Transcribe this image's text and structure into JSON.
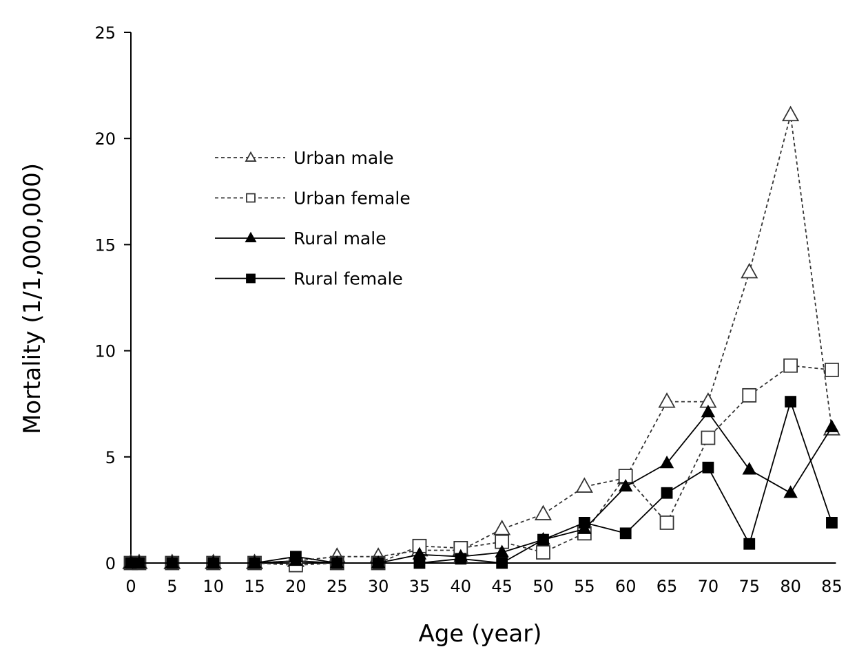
{
  "chart_data": {
    "type": "line",
    "title": "",
    "xlabel": "Age (year)",
    "ylabel": "Mortality (1/1,000,000)",
    "xlim": [
      0,
      85
    ],
    "ylim": [
      0,
      25
    ],
    "x_ticks": [
      0,
      5,
      10,
      15,
      20,
      25,
      30,
      35,
      40,
      45,
      50,
      55,
      60,
      65,
      70,
      75,
      80,
      85
    ],
    "y_ticks": [
      0,
      5,
      10,
      15,
      20,
      25
    ],
    "grid": false,
    "legend_position": "top-left",
    "series": [
      {
        "name": "Urban male",
        "line": "dashed",
        "marker": "triangle",
        "fill": "open",
        "color": "#333333",
        "x": [
          0,
          1,
          5,
          10,
          15,
          20,
          25,
          30,
          35,
          40,
          45,
          50,
          55,
          60,
          65,
          70,
          75,
          80,
          85
        ],
        "y": [
          0,
          0,
          0,
          0,
          0,
          0.1,
          0.3,
          0.3,
          0.6,
          0.6,
          1.6,
          2.3,
          3.6,
          4.0,
          7.6,
          7.6,
          13.7,
          21.1,
          6.3
        ]
      },
      {
        "name": "Urban female",
        "line": "dashed",
        "marker": "square",
        "fill": "open",
        "color": "#333333",
        "x": [
          0,
          1,
          5,
          10,
          15,
          20,
          25,
          30,
          35,
          40,
          45,
          50,
          55,
          60,
          65,
          70,
          75,
          80,
          85
        ],
        "y": [
          0,
          0,
          0,
          0,
          0,
          -0.1,
          0,
          0,
          0.8,
          0.7,
          1.0,
          0.5,
          1.4,
          4.1,
          1.9,
          5.9,
          7.9,
          9.3,
          9.1
        ]
      },
      {
        "name": "Rural male",
        "line": "solid",
        "marker": "triangle",
        "fill": "filled",
        "color": "#000000",
        "x": [
          0,
          1,
          5,
          10,
          15,
          20,
          25,
          30,
          35,
          40,
          45,
          50,
          55,
          60,
          65,
          70,
          75,
          80,
          85
        ],
        "y": [
          0,
          0,
          0,
          0,
          0,
          0.1,
          0,
          0,
          0.4,
          0.3,
          0.5,
          1.1,
          1.6,
          3.6,
          4.7,
          7.1,
          4.4,
          3.3,
          6.4
        ]
      },
      {
        "name": "Rural female",
        "line": "solid",
        "marker": "square",
        "fill": "filled",
        "color": "#000000",
        "x": [
          0,
          1,
          5,
          10,
          15,
          20,
          25,
          30,
          35,
          40,
          45,
          50,
          55,
          60,
          65,
          70,
          75,
          80,
          85
        ],
        "y": [
          0,
          0,
          0,
          0,
          0,
          0.3,
          0,
          0,
          0,
          0.2,
          0,
          1.1,
          1.9,
          1.4,
          3.3,
          4.5,
          0.9,
          7.6,
          1.9
        ]
      }
    ]
  }
}
